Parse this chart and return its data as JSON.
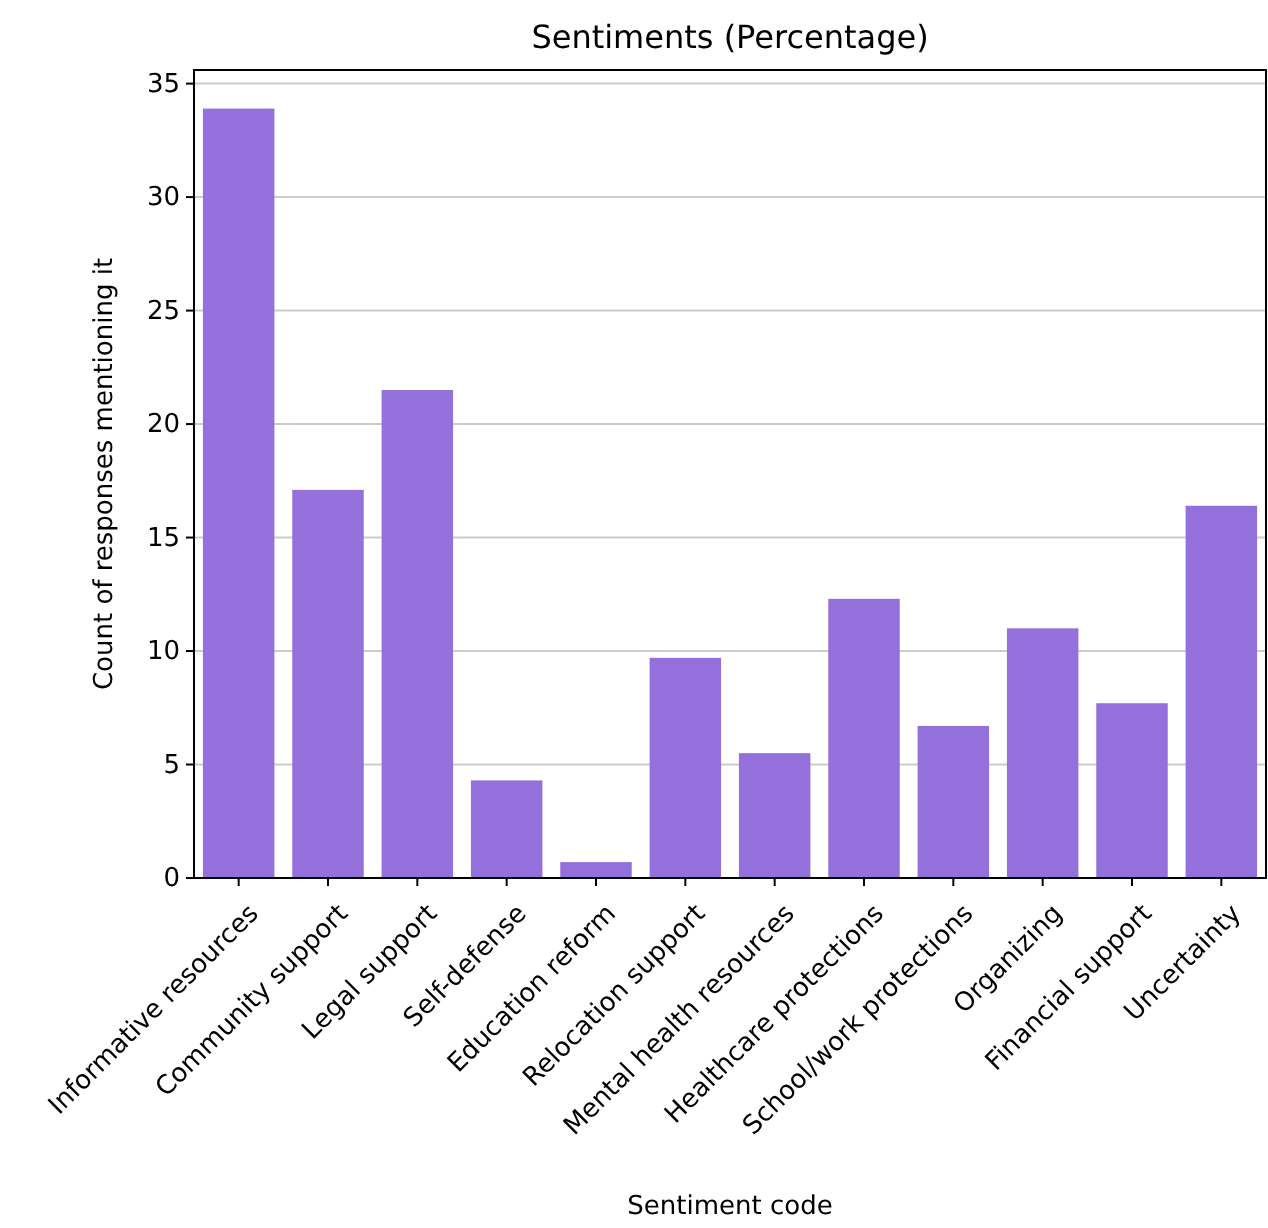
{
  "chart_data": {
    "type": "bar",
    "title": "Sentiments (Percentage)",
    "xlabel": "Sentiment code",
    "ylabel": "Count of responses mentioning it",
    "categories": [
      "Informative resources",
      "Community support",
      "Legal support",
      "Self-defense",
      "Education reform",
      "Relocation support",
      "Mental health resources",
      "Healthcare protections",
      "School/work protections",
      "Organizing",
      "Financial support",
      "Uncertainty"
    ],
    "values": [
      33.9,
      17.1,
      21.5,
      4.3,
      0.7,
      9.7,
      5.5,
      12.3,
      6.7,
      11.0,
      7.7,
      16.4
    ],
    "color": "#9370db",
    "ylim": [
      0,
      35.6
    ],
    "yticks": [
      0,
      5,
      10,
      15,
      20,
      25,
      30,
      35
    ],
    "grid": "y"
  }
}
